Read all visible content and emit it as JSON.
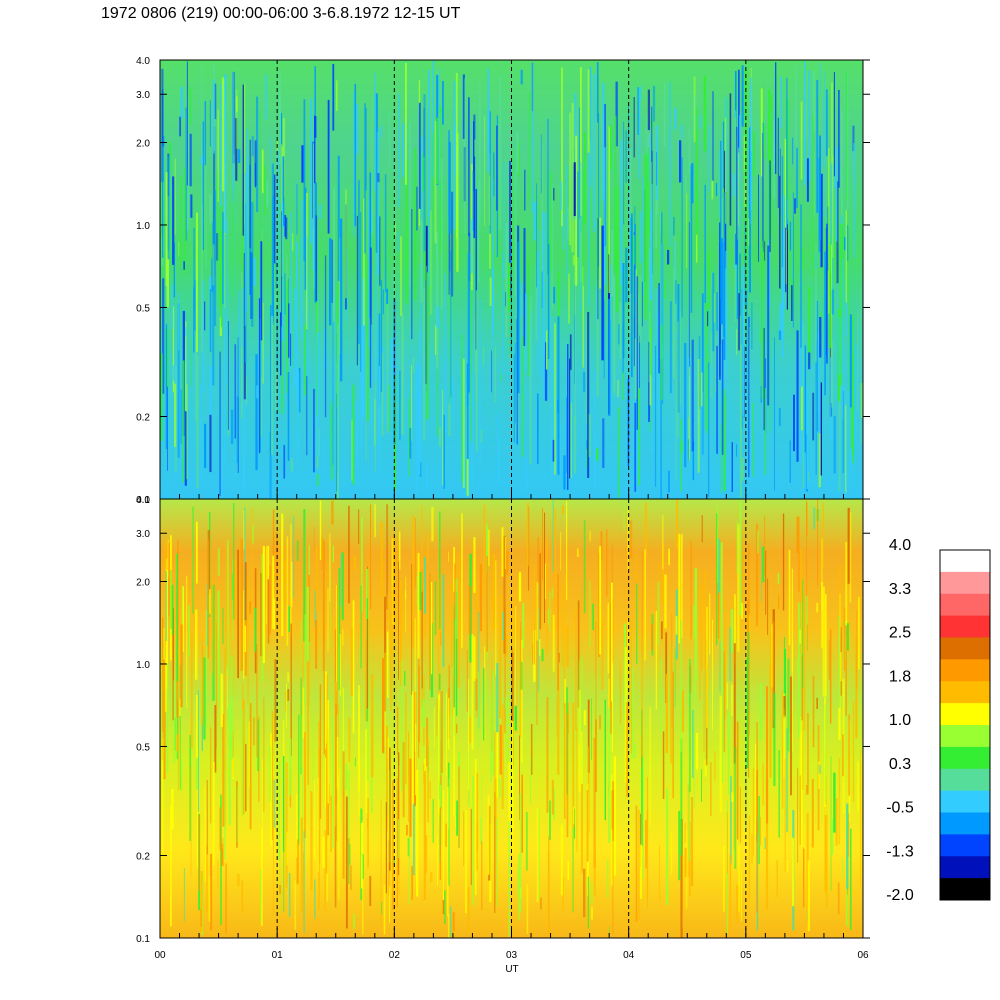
{
  "title": "1972 0806 (219) 00:00-06:00 3-6.8.1972  12-15 UT",
  "chart_data": [
    {
      "type": "heatmap",
      "panel": "top",
      "y_scale": "log",
      "ylim": [
        0.1,
        4.0
      ],
      "y_ticks": [
        "4.0",
        "3.0",
        "2.0",
        "1.0",
        "0.5",
        "0.2",
        "0.1"
      ],
      "x_ticks": [
        "00",
        "01",
        "02",
        "03",
        "04",
        "05",
        "06"
      ],
      "xlim": [
        0,
        6
      ],
      "hour_markers": [
        1,
        2,
        3,
        4,
        5
      ],
      "dominant_levels": [
        -0.5,
        0.3
      ]
    },
    {
      "type": "heatmap",
      "panel": "bottom",
      "y_scale": "log",
      "ylim": [
        0.1,
        4.0
      ],
      "y_ticks": [
        "4.0",
        "3.0",
        "2.0",
        "1.0",
        "0.5",
        "0.2",
        "0.1"
      ],
      "x_ticks": [
        "00",
        "01",
        "02",
        "03",
        "04",
        "05",
        "06"
      ],
      "xlim": [
        0,
        6
      ],
      "xlabel": "UT",
      "hour_markers": [
        1,
        2,
        3,
        4,
        5
      ],
      "dominant_levels": [
        1.0,
        1.8
      ]
    }
  ],
  "colorbar": {
    "labels": [
      "4.0",
      "3.3",
      "2.5",
      "1.8",
      "1.0",
      "0.3",
      "-0.5",
      "-1.3",
      "-2.0"
    ],
    "colors": [
      "#ffffff",
      "#ff9999",
      "#ff6666",
      "#ff3333",
      "#dd6f00",
      "#ff9900",
      "#ffbb00",
      "#ffff00",
      "#99ff33",
      "#33ee33",
      "#55dd99",
      "#33ccff",
      "#0099ff",
      "#0044ff",
      "#0011bb",
      "#000000"
    ]
  }
}
